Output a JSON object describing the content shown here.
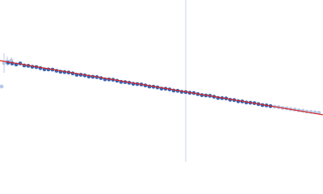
{
  "chart_data": {
    "type": "scatter",
    "xlim": [
      0,
      400
    ],
    "ylim": [
      0,
      200
    ],
    "vline": {
      "value": 230,
      "color": "#c8d4ea"
    },
    "series": [
      {
        "style": "points",
        "color": "#b8c8e8",
        "x": [
          2,
          5,
          9,
          14
        ],
        "values": [
          93,
          122,
          124,
          125
        ],
        "errors": [
          0,
          12,
          6,
          4
        ]
      },
      {
        "style": "points",
        "color": "#3a63b0",
        "x": [
          10,
          15,
          20,
          25,
          30,
          35,
          40,
          45,
          50,
          55,
          60,
          65,
          70,
          75,
          80,
          85,
          90,
          95,
          100,
          105,
          110,
          115,
          120,
          125,
          130,
          135,
          140,
          145,
          150,
          155,
          160,
          165,
          170,
          175,
          180,
          185,
          190,
          195,
          200,
          205,
          210,
          215,
          220,
          225,
          230,
          235,
          240,
          245,
          250,
          255,
          260,
          265,
          270,
          275,
          280,
          285,
          290,
          295,
          300,
          305,
          310,
          315,
          320,
          325,
          330,
          335
        ],
        "values": [
          122.4,
          121.5,
          120.2,
          121.5,
          119.0,
          118.6,
          117.4,
          117.0,
          115.7,
          114.2,
          114.1,
          113.9,
          112.4,
          111.2,
          110.8,
          110.3,
          109.2,
          107.5,
          107.5,
          106.7,
          105.3,
          105.0,
          104.6,
          103.4,
          101.8,
          101.7,
          101.3,
          100.1,
          98.7,
          98.4,
          97.6,
          96.3,
          96.0,
          95.5,
          94.3,
          93.0,
          92.7,
          91.8,
          90.4,
          90.2,
          89.4,
          88.0,
          87.7,
          86.4,
          86.1,
          85.2,
          84.9,
          83.6,
          82.3,
          81.9,
          81.5,
          80.3,
          78.8,
          78.6,
          78.2,
          76.6,
          76.2,
          74.7,
          74.5,
          73.2,
          72.9,
          72.4,
          71.2,
          70.0,
          69.6,
          68.7
        ]
      },
      {
        "style": "points",
        "color": "#b8c8e8",
        "x": [
          340,
          345,
          350,
          355,
          360,
          365,
          370,
          375,
          380,
          385,
          390,
          395
        ],
        "values": [
          68,
          67.5,
          66.5,
          66,
          65,
          64.5,
          63.5,
          63,
          62,
          61.5,
          61,
          60.5
        ]
      },
      {
        "style": "line",
        "color": "#d62728",
        "x": [
          0,
          400
        ],
        "values": [
          125,
          58
        ]
      }
    ]
  }
}
